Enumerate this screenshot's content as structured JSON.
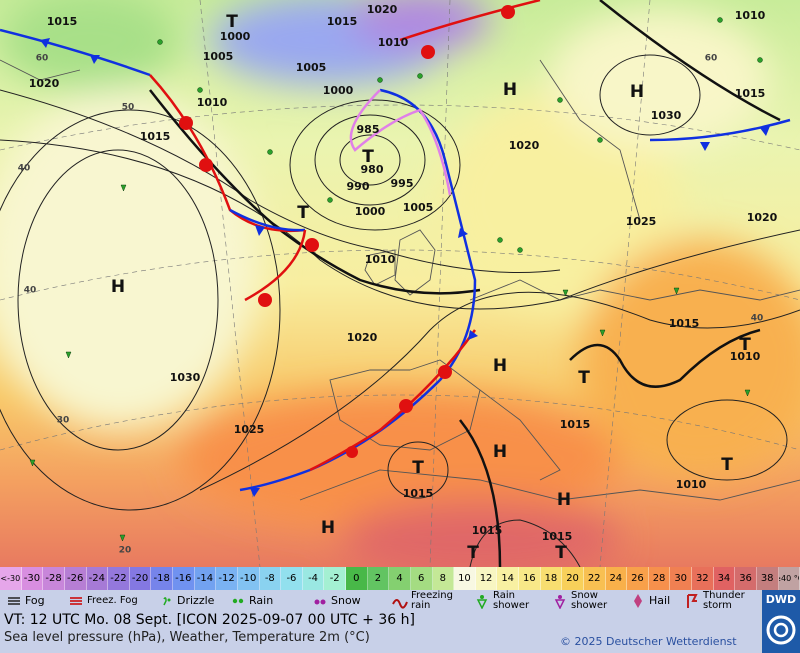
{
  "map": {
    "labels": [
      "1015",
      "T",
      "1020",
      "1015",
      "1000",
      "1010",
      "1005",
      "1005",
      "1020",
      "1000",
      "1010",
      "H",
      "H",
      "1010",
      "1015",
      "1030",
      "985",
      "1015",
      "1020",
      "T",
      "980",
      "990",
      "995",
      "1005",
      "1000",
      "T",
      "1025",
      "1020",
      "1010",
      "H",
      "1020",
      "1015",
      "T",
      "1010",
      "H",
      "T",
      "1030",
      "1025",
      "1015",
      "H",
      "T",
      "T",
      "1010",
      "1015",
      "H",
      "H",
      "1015",
      "1015",
      "T",
      "T",
      "60",
      "50",
      "40",
      "40",
      "30",
      "20",
      "40",
      "60"
    ]
  },
  "scale": [
    {
      "label": "<-30",
      "color": "#e6a6ea"
    },
    {
      "label": "-30",
      "color": "#d88ee0"
    },
    {
      "label": "-28",
      "color": "#c886da"
    },
    {
      "label": "-26",
      "color": "#b67ed4"
    },
    {
      "label": "-24",
      "color": "#a67ad6"
    },
    {
      "label": "-22",
      "color": "#9478dc"
    },
    {
      "label": "-20",
      "color": "#8478e2"
    },
    {
      "label": "-18",
      "color": "#7684ea"
    },
    {
      "label": "-16",
      "color": "#7092f0"
    },
    {
      "label": "-14",
      "color": "#72a2f0"
    },
    {
      "label": "-12",
      "color": "#7ab2f2"
    },
    {
      "label": "-10",
      "color": "#82c2f2"
    },
    {
      "label": "-8",
      "color": "#8ad2f0"
    },
    {
      "label": "-6",
      "color": "#92e0ee"
    },
    {
      "label": "-4",
      "color": "#9ae8e2"
    },
    {
      "label": "-2",
      "color": "#a4f0d2"
    },
    {
      "label": "0",
      "color": "#48b848"
    },
    {
      "label": "2",
      "color": "#62c462"
    },
    {
      "label": "4",
      "color": "#84d070"
    },
    {
      "label": "6",
      "color": "#a4dc82"
    },
    {
      "label": "8",
      "color": "#c4e896"
    },
    {
      "label": "10",
      "color": "#f8f8e2"
    },
    {
      "label": "12",
      "color": "#f8f6c2"
    },
    {
      "label": "14",
      "color": "#f8f0a2"
    },
    {
      "label": "16",
      "color": "#f8e888"
    },
    {
      "label": "18",
      "color": "#f8de70"
    },
    {
      "label": "20",
      "color": "#f8d05a"
    },
    {
      "label": "22",
      "color": "#f8c052"
    },
    {
      "label": "24",
      "color": "#f8b04a"
    },
    {
      "label": "26",
      "color": "#f8a04a"
    },
    {
      "label": "28",
      "color": "#f6904c"
    },
    {
      "label": "30",
      "color": "#f08052"
    },
    {
      "label": "32",
      "color": "#e8705a"
    },
    {
      "label": "34",
      "color": "#e06262"
    },
    {
      "label": "36",
      "color": "#d46c6c"
    },
    {
      "label": "38",
      "color": "#c47e7e"
    },
    {
      "label": "≥40 °C",
      "color": "#c0a2a2"
    }
  ],
  "legend": [
    "Fog",
    "Freez. Fog",
    "Drizzle",
    "Rain",
    "Snow",
    "Freezing rain",
    "Rain shower",
    "Snow shower",
    "Hail",
    "Thunder storm"
  ],
  "footer": {
    "valid_time": "VT: 12 UTC Mo.  08 Sept. [ICON 2025-09-07  00 UTC + 36 h]",
    "description": "Sea level pressure (hPa), Weather, Temperature 2m (°C)",
    "copyright": "© 2025 Deutscher Wetterdienst",
    "logo": "DWD"
  }
}
